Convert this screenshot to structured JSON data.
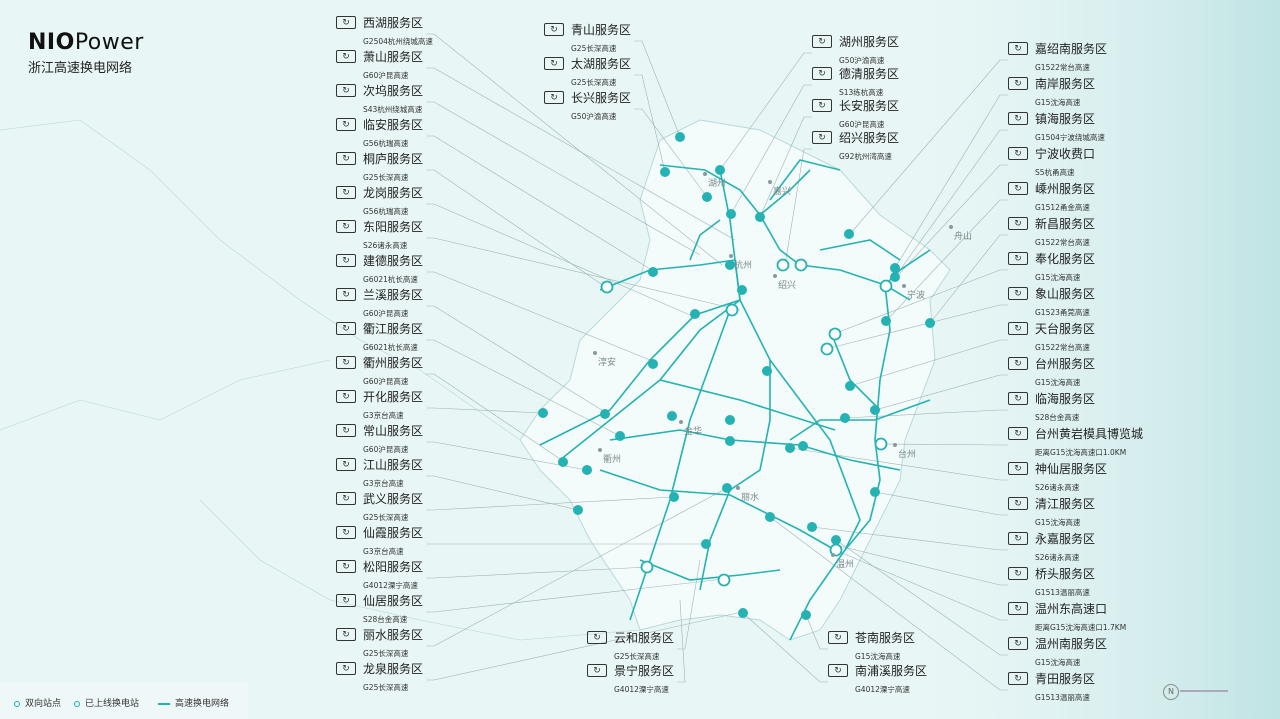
{
  "brand": {
    "logo_bold": "NIO",
    "logo_light": "Power",
    "subtitle": "浙江高速换电网络"
  },
  "colors": {
    "accent": "#1fb0b0",
    "background": "#e9f6f6",
    "sea": "#cfeaea"
  },
  "legend": {
    "two_way": "双向站点",
    "online": "已上线换电站",
    "network": "高速换电网络"
  },
  "cities": [
    "湖州",
    "嘉兴",
    "杭州",
    "绍兴",
    "宁波",
    "舟山",
    "淳安",
    "金华",
    "衢州",
    "台州",
    "丽水",
    "温州"
  ],
  "compass_label": "N",
  "left_stations": [
    {
      "name": "西湖服务区",
      "road": "G2504杭州绕城高速"
    },
    {
      "name": "萧山服务区",
      "road": "G60沪昆高速"
    },
    {
      "name": "次坞服务区",
      "road": "S43杭州绕城高速"
    },
    {
      "name": "临安服务区",
      "road": "G56杭瑞高速"
    },
    {
      "name": "桐庐服务区",
      "road": "G25长深高速"
    },
    {
      "name": "龙岗服务区",
      "road": "G56杭瑞高速"
    },
    {
      "name": "东阳服务区",
      "road": "S26诸永高速"
    },
    {
      "name": "建德服务区",
      "road": "G6021杭长高速"
    },
    {
      "name": "兰溪服务区",
      "road": "G60沪昆高速"
    },
    {
      "name": "衢江服务区",
      "road": "G6021杭长高速"
    },
    {
      "name": "衢州服务区",
      "road": "G60沪昆高速"
    },
    {
      "name": "开化服务区",
      "road": "G3京台高速"
    },
    {
      "name": "常山服务区",
      "road": "G60沪昆高速"
    },
    {
      "name": "江山服务区",
      "road": "G3京台高速"
    },
    {
      "name": "武义服务区",
      "road": "G25长深高速"
    },
    {
      "name": "仙霞服务区",
      "road": "G3京台高速"
    },
    {
      "name": "松阳服务区",
      "road": "G4012溧宁高速"
    },
    {
      "name": "仙居服务区",
      "road": "S28台金高速"
    },
    {
      "name": "丽水服务区",
      "road": "G25长深高速"
    },
    {
      "name": "龙泉服务区",
      "road": "G25长深高速"
    }
  ],
  "top_mid_stations": [
    {
      "name": "青山服务区",
      "road": "G25长深高速"
    },
    {
      "name": "太湖服务区",
      "road": "G25长深高速"
    },
    {
      "name": "长兴服务区",
      "road": "G50沪渝高速"
    }
  ],
  "top_right_stations": [
    {
      "name": "湖州服务区",
      "road": "G50沪渝高速"
    },
    {
      "name": "德清服务区",
      "road": "S13练杭高速"
    },
    {
      "name": "长安服务区",
      "road": "G60沪昆高速"
    },
    {
      "name": "绍兴服务区",
      "road": "G92杭州湾高速"
    }
  ],
  "right_stations": [
    {
      "name": "嘉绍南服务区",
      "road": "G1522常台高速"
    },
    {
      "name": "南岸服务区",
      "road": "G15沈海高速"
    },
    {
      "name": "镇海服务区",
      "road": "G1504宁波绕城高速"
    },
    {
      "name": "宁波收费口",
      "road": "S5杭甬高速"
    },
    {
      "name": "嵊州服务区",
      "road": "G1512甬金高速"
    },
    {
      "name": "新昌服务区",
      "road": "G1522常台高速"
    },
    {
      "name": "奉化服务区",
      "road": "G15沈海高速"
    },
    {
      "name": "象山服务区",
      "road": "G1523甬莞高速"
    },
    {
      "name": "天台服务区",
      "road": "G1522常台高速"
    },
    {
      "name": "台州服务区",
      "road": "G15沈海高速"
    },
    {
      "name": "临海服务区",
      "road": "S28台金高速"
    },
    {
      "name": "台州黄岩模具博览城",
      "road": "距离G15沈海高速口1.0KM"
    },
    {
      "name": "神仙居服务区",
      "road": "S26诸永高速"
    },
    {
      "name": "清江服务区",
      "road": "G15沈海高速"
    },
    {
      "name": "永嘉服务区",
      "road": "S26诸永高速"
    },
    {
      "name": "桥头服务区",
      "road": "G1513温丽高速"
    },
    {
      "name": "温州东高速口",
      "road": "距离G15沈海高速口1.7KM"
    },
    {
      "name": "温州南服务区",
      "road": "G15沈海高速"
    },
    {
      "name": "青田服务区",
      "road": "G1513温丽高速"
    }
  ],
  "bottom_mid_stations": [
    {
      "name": "云和服务区",
      "road": "G25长深高速"
    },
    {
      "name": "景宁服务区",
      "road": "G4012溧宁高速"
    }
  ],
  "bottom_right_stations": [
    {
      "name": "苍南服务区",
      "road": "G15沈海高速"
    },
    {
      "name": "南浦溪服务区",
      "road": "G4012溧宁高速"
    }
  ]
}
